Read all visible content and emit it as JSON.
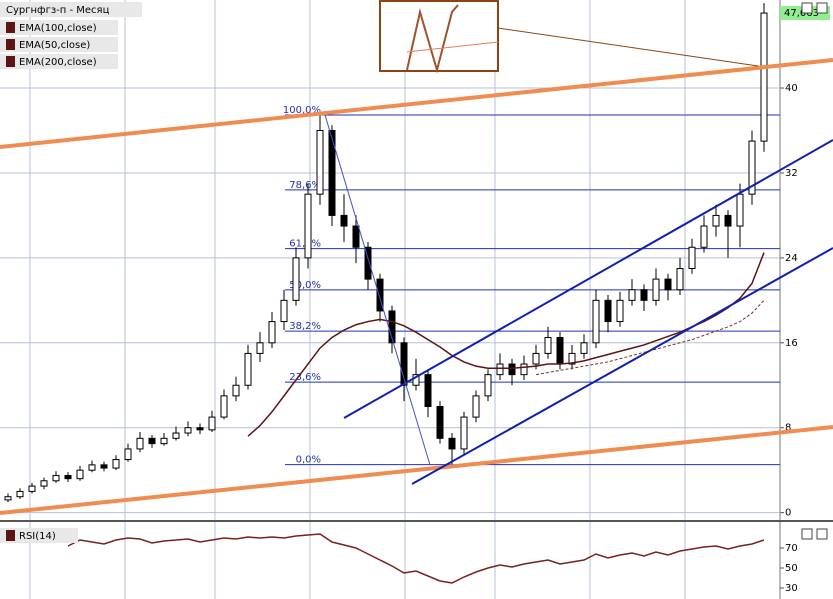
{
  "chart_data": [
    {
      "type": "candlestick",
      "title": "Сургнфгз-п - Месяц",
      "ylim": [
        -0.6,
        48.2
      ],
      "yticks": [
        0,
        8,
        16,
        24,
        32,
        40
      ],
      "grid": true,
      "price_tag": {
        "value": 47.063,
        "label": "47,063"
      },
      "candles": [
        [
          1.2,
          1.8,
          1.0,
          1.5
        ],
        [
          1.5,
          2.3,
          1.3,
          2
        ],
        [
          2,
          2.8,
          1.8,
          2.5
        ],
        [
          2.5,
          3.3,
          2.2,
          3
        ],
        [
          3,
          3.9,
          2.8,
          3.5
        ],
        [
          3.5,
          3.8,
          2.9,
          3.2
        ],
        [
          3.2,
          4.4,
          3.0,
          4
        ],
        [
          4,
          4.9,
          3.8,
          4.5
        ],
        [
          4.5,
          4.8,
          3.9,
          4.2
        ],
        [
          4.2,
          5.4,
          4.0,
          5
        ],
        [
          5,
          6.5,
          4.8,
          6
        ],
        [
          6,
          7.6,
          5.7,
          7
        ],
        [
          7,
          7.3,
          6.1,
          6.5
        ],
        [
          6.5,
          7.5,
          6.3,
          7
        ],
        [
          7,
          8.1,
          6.8,
          7.5
        ],
        [
          7.5,
          8.6,
          7.2,
          8
        ],
        [
          8,
          8.4,
          7.4,
          7.8
        ],
        [
          7.8,
          9.6,
          7.6,
          9
        ],
        [
          9,
          11.6,
          8.8,
          11
        ],
        [
          11,
          12.8,
          10.5,
          12
        ],
        [
          12,
          15.8,
          11.6,
          15
        ],
        [
          15,
          17,
          14.2,
          16
        ],
        [
          16,
          18.9,
          15.5,
          18
        ],
        [
          18,
          21,
          17.2,
          20
        ],
        [
          20,
          25,
          19.5,
          24
        ],
        [
          24,
          31,
          23,
          30
        ],
        [
          30,
          37.5,
          29,
          36
        ],
        [
          36,
          36.5,
          27,
          28
        ],
        [
          28,
          30,
          25.5,
          27
        ],
        [
          27,
          28,
          23.5,
          25
        ],
        [
          25,
          25.5,
          21,
          22
        ],
        [
          22,
          22.5,
          18,
          19
        ],
        [
          19,
          19.5,
          15,
          16
        ],
        [
          16,
          16.5,
          10.5,
          12
        ],
        [
          12,
          14.5,
          11.5,
          13
        ],
        [
          13,
          13.5,
          9,
          10
        ],
        [
          10,
          10.5,
          6.5,
          7
        ],
        [
          7,
          7.5,
          4.5,
          6
        ],
        [
          6,
          9.5,
          5.5,
          9
        ],
        [
          9,
          11.5,
          8.5,
          11
        ],
        [
          11,
          13.5,
          10.5,
          13
        ],
        [
          13,
          15,
          12.5,
          14
        ],
        [
          14,
          14.5,
          12,
          13
        ],
        [
          13,
          14.8,
          12.5,
          14
        ],
        [
          14,
          15.8,
          13.5,
          15
        ],
        [
          15,
          17.5,
          14.5,
          16.5
        ],
        [
          16.5,
          17,
          13.5,
          14
        ],
        [
          14,
          15.8,
          13.5,
          15
        ],
        [
          15,
          16.8,
          14.5,
          16
        ],
        [
          16,
          21,
          15.5,
          20
        ],
        [
          20,
          20.5,
          17,
          18
        ],
        [
          18,
          20.8,
          17.5,
          20
        ],
        [
          20,
          22,
          19.5,
          21
        ],
        [
          21,
          21.5,
          19,
          20
        ],
        [
          20,
          23,
          19.5,
          22
        ],
        [
          22,
          22.5,
          20,
          21
        ],
        [
          21,
          24,
          20.5,
          23
        ],
        [
          23,
          25.8,
          22.5,
          25
        ],
        [
          25,
          28,
          24.5,
          27
        ],
        [
          27,
          29,
          26,
          28
        ],
        [
          28,
          28.5,
          24,
          27
        ],
        [
          27,
          31,
          25,
          30
        ],
        [
          30,
          36,
          29,
          35
        ],
        [
          35,
          48,
          34,
          47.063
        ]
      ],
      "series": [
        {
          "name": "EMA(100,close)",
          "color": "#7a3030",
          "values": [
            null,
            null,
            null,
            null,
            null,
            null,
            null,
            null,
            null,
            null,
            null,
            null,
            null,
            null,
            null,
            null,
            null,
            null,
            null,
            null,
            null,
            null,
            null,
            null,
            null,
            null,
            null,
            null,
            null,
            null,
            null,
            null,
            null,
            null,
            null,
            null,
            null,
            null,
            null,
            null,
            null,
            null,
            null,
            null,
            13,
            13.2,
            13.4,
            13.6,
            13.8,
            14,
            14.2,
            14.5,
            14.8,
            15.1,
            15.4,
            15.7,
            16,
            16.3,
            16.7,
            17.1,
            17.5,
            18,
            18.8,
            20
          ]
        },
        {
          "name": "EMA(50,close)",
          "color": "#5c1414",
          "values": [
            null,
            null,
            null,
            null,
            null,
            null,
            null,
            null,
            null,
            null,
            null,
            null,
            null,
            null,
            null,
            null,
            null,
            null,
            null,
            null,
            7.2,
            8.2,
            9.5,
            11,
            12.5,
            14,
            15.5,
            16.5,
            17.2,
            17.7,
            18,
            18.2,
            18,
            17.6,
            17,
            16.3,
            15.6,
            14.8,
            14.2,
            13.8,
            13.6,
            13.6,
            13.6,
            13.7,
            13.8,
            14,
            14,
            14.1,
            14.3,
            14.6,
            14.9,
            15.2,
            15.5,
            15.8,
            16.2,
            16.6,
            17,
            17.5,
            18,
            18.6,
            19.3,
            20.2,
            21.6,
            24.5
          ]
        },
        {
          "name": "EMA(200,close)",
          "color": "#5c1414",
          "values": [
            null,
            null,
            null,
            null,
            null,
            null,
            null,
            null,
            null,
            null,
            null,
            null,
            null,
            null,
            null,
            null,
            null,
            null,
            null,
            null,
            null,
            null,
            null,
            null,
            null,
            null,
            null,
            null,
            null,
            null,
            null,
            null,
            null,
            null,
            null,
            null,
            null,
            null,
            null,
            null,
            null,
            null,
            null,
            null,
            null,
            null,
            null,
            null,
            null,
            null,
            null,
            null,
            null,
            null,
            null,
            null,
            null,
            null,
            null,
            null,
            null,
            null,
            null,
            null
          ]
        }
      ],
      "fibonacci": {
        "high": 37.46,
        "low": 4.52,
        "levels": [
          {
            "value": 100,
            "label": "100,0%"
          },
          {
            "value": 78.6,
            "label": "78,6%"
          },
          {
            "value": 61.8,
            "label": "61,8%"
          },
          {
            "value": 50,
            "label": "50,0%"
          },
          {
            "value": 38.2,
            "label": "38,2%"
          },
          {
            "value": 23.6,
            "label": "23,6%"
          },
          {
            "value": 0,
            "label": "0,0%"
          }
        ]
      }
    },
    {
      "type": "line",
      "title": "RSI(14)",
      "ylim": [
        21,
        96
      ],
      "yticks": [
        30,
        50,
        70
      ],
      "series": [
        {
          "name": "RSI(14)",
          "color": "#7a2020",
          "values": [
            null,
            null,
            null,
            null,
            null,
            72,
            78,
            76,
            74,
            78,
            80,
            79,
            75,
            77,
            78,
            79,
            76,
            78,
            80,
            79,
            81,
            80,
            81,
            80,
            82,
            83,
            84,
            76,
            73,
            70,
            64,
            58,
            52,
            45,
            47,
            42,
            37,
            35,
            41,
            46,
            50,
            53,
            51,
            54,
            56,
            58,
            54,
            56,
            58,
            64,
            60,
            63,
            65,
            62,
            66,
            63,
            67,
            69,
            71,
            72,
            69,
            72,
            74,
            78
          ]
        }
      ]
    }
  ]
}
